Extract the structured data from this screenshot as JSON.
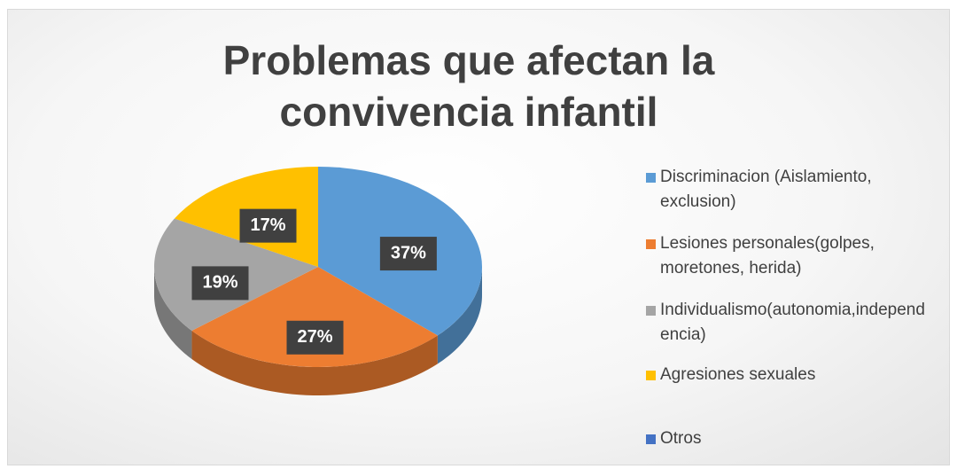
{
  "chart_data": {
    "type": "pie3d",
    "title": "Problemas que afectan la convivencia infantil",
    "categories": [
      "Discriminacion (Aislamiento, exclusion)",
      "Lesiones personales(golpes, moretones, herida)",
      "Individualismo(autonomia,independencia)",
      "Agresiones sexuales",
      "Otros"
    ],
    "values": [
      37,
      27,
      19,
      17,
      0
    ],
    "value_labels": [
      "37%",
      "27%",
      "19%",
      "17%",
      null
    ],
    "colors": [
      "#5b9bd5",
      "#ed7d31",
      "#a5a5a5",
      "#ffc000",
      "#4472c4"
    ],
    "legend": "right"
  }
}
